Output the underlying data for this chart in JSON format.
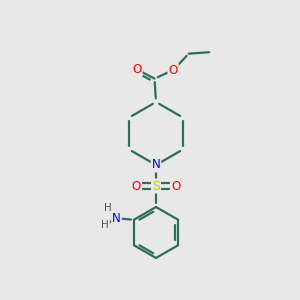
{
  "background_color": "#e8e8e8",
  "bond_color": "#2d6e5a",
  "atom_colors": {
    "O": "#ff0000",
    "N": "#0000dd",
    "S": "#cccc00",
    "C": "#2d6e5a",
    "H": "#555555"
  },
  "figsize": [
    3.0,
    3.0
  ],
  "dpi": 100,
  "xlim": [
    0,
    10
  ],
  "ylim": [
    0,
    10
  ]
}
